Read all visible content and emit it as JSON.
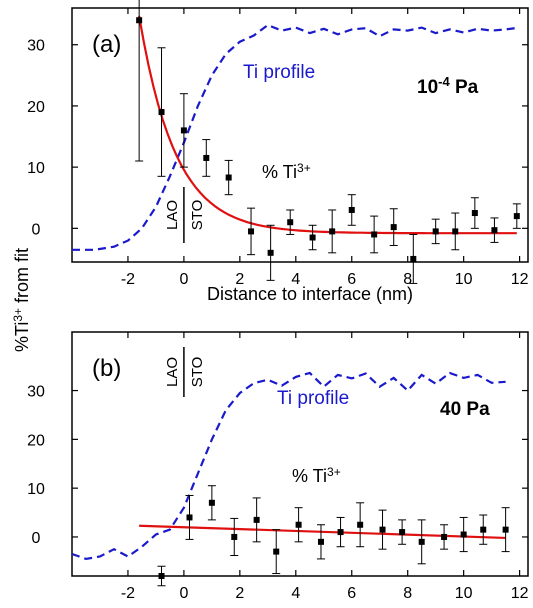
{
  "figure": {
    "ylabel": "%Ti³⁺ from fit",
    "ylabel_base": "%Ti",
    "ylabel_sup": "3+",
    "ylabel_rest": " from fit"
  },
  "chart_data": [
    {
      "type": "scatter",
      "panel": "(a)",
      "pressure": "10-4 Pa",
      "pressure_base": "10",
      "pressure_sup": "-4",
      "pressure_unit": " Pa",
      "xlabel": "Distance to interface (nm)",
      "xlim": [
        -4,
        12.3
      ],
      "ylim": [
        -5.5,
        36
      ],
      "xticks": [
        -2,
        0,
        2,
        4,
        6,
        8,
        10,
        12
      ],
      "yticks": [
        0,
        10,
        20,
        30
      ],
      "interface_left": "LAO",
      "interface_right": "STO",
      "ti_label": "Ti profile",
      "series_label_base": "% Ti",
      "series_label_sup": "3+",
      "colors": {
        "ti_profile": "#1a1acc",
        "fit": "#e01010",
        "points": "#000000"
      },
      "points": [
        {
          "x": -1.6,
          "y": 34.0,
          "err": 23.0
        },
        {
          "x": -0.8,
          "y": 19.0,
          "err": 10.5
        },
        {
          "x": 0.0,
          "y": 16.0,
          "err": 6.0
        },
        {
          "x": 0.8,
          "y": 11.5,
          "err": 3.0
        },
        {
          "x": 1.6,
          "y": 8.3,
          "err": 2.8
        },
        {
          "x": 2.4,
          "y": -0.5,
          "err": 3.8
        },
        {
          "x": 3.1,
          "y": -4.0,
          "err": 4.5
        },
        {
          "x": 3.8,
          "y": 1.0,
          "err": 2.0
        },
        {
          "x": 4.6,
          "y": -1.5,
          "err": 2.0
        },
        {
          "x": 5.3,
          "y": -0.5,
          "err": 3.5
        },
        {
          "x": 6.0,
          "y": 3.0,
          "err": 2.5
        },
        {
          "x": 6.8,
          "y": -1.0,
          "err": 3.0
        },
        {
          "x": 7.5,
          "y": 0.2,
          "err": 3.0
        },
        {
          "x": 8.2,
          "y": -5.0,
          "err": 4.0
        },
        {
          "x": 9.0,
          "y": -0.5,
          "err": 2.0
        },
        {
          "x": 9.7,
          "y": -0.5,
          "err": 3.0
        },
        {
          "x": 10.4,
          "y": 2.5,
          "err": 2.5
        },
        {
          "x": 11.1,
          "y": -0.3,
          "err": 2.0
        },
        {
          "x": 11.9,
          "y": 2.0,
          "err": 2.0
        }
      ],
      "fit": {
        "x_start": -1.6,
        "x_end": 11.9,
        "y_inf": -0.8,
        "amplitude": 35.5,
        "decay_nm": 1.3
      },
      "ti_profile": [
        [
          -4,
          -3.5
        ],
        [
          -3.2,
          -3.5
        ],
        [
          -2.5,
          -3.0
        ],
        [
          -2,
          -2.0
        ],
        [
          -1.5,
          0.0
        ],
        [
          -1,
          3.5
        ],
        [
          -0.5,
          8.5
        ],
        [
          0,
          14
        ],
        [
          0.5,
          20
        ],
        [
          1,
          25
        ],
        [
          1.5,
          28.5
        ],
        [
          2,
          30.5
        ],
        [
          2.5,
          31.5
        ],
        [
          3,
          33.2
        ],
        [
          3.5,
          32.3
        ],
        [
          4,
          32.8
        ],
        [
          4.5,
          31.9
        ],
        [
          5,
          32.6
        ],
        [
          5.5,
          31.7
        ],
        [
          6,
          32.5
        ],
        [
          6.5,
          32.7
        ],
        [
          7,
          31.4
        ],
        [
          7.5,
          32.5
        ],
        [
          8,
          32.3
        ],
        [
          8.5,
          32.8
        ],
        [
          9,
          31.9
        ],
        [
          9.5,
          32.5
        ],
        [
          10,
          32.0
        ],
        [
          10.5,
          32.6
        ],
        [
          11,
          32.3
        ],
        [
          11.5,
          32.5
        ],
        [
          12,
          32.8
        ]
      ]
    },
    {
      "type": "scatter",
      "panel": "(b)",
      "pressure": "40 Pa",
      "xlabel": "",
      "xlim": [
        -4,
        12.3
      ],
      "ylim": [
        -8,
        42
      ],
      "xticks": [
        -2,
        0,
        2,
        4,
        6,
        8,
        10,
        12
      ],
      "yticks": [
        0,
        10,
        20,
        30
      ],
      "interface_left": "LAO",
      "interface_right": "STO",
      "ti_label": "Ti profile",
      "series_label_base": "% Ti",
      "series_label_sup": "3+",
      "colors": {
        "ti_profile": "#1a1acc",
        "fit": "#e01010",
        "points": "#000000"
      },
      "points": [
        {
          "x": -0.8,
          "y": -8.0,
          "err": 2.0
        },
        {
          "x": 0.2,
          "y": 4.0,
          "err": 4.5
        },
        {
          "x": 1.0,
          "y": 7.0,
          "err": 3.5
        },
        {
          "x": 1.8,
          "y": 0.0,
          "err": 3.8
        },
        {
          "x": 2.6,
          "y": 3.5,
          "err": 4.5
        },
        {
          "x": 3.3,
          "y": -3.0,
          "err": 4.5
        },
        {
          "x": 4.1,
          "y": 2.5,
          "err": 3.5
        },
        {
          "x": 4.9,
          "y": -1.0,
          "err": 3.5
        },
        {
          "x": 5.6,
          "y": 1.0,
          "err": 3.0
        },
        {
          "x": 6.3,
          "y": 2.5,
          "err": 4.5
        },
        {
          "x": 7.1,
          "y": 1.5,
          "err": 4.0
        },
        {
          "x": 7.8,
          "y": 1.0,
          "err": 2.5
        },
        {
          "x": 8.5,
          "y": -1.0,
          "err": 4.5
        },
        {
          "x": 9.3,
          "y": 0.0,
          "err": 2.5
        },
        {
          "x": 10.0,
          "y": 0.5,
          "err": 3.5
        },
        {
          "x": 10.7,
          "y": 1.5,
          "err": 3.0
        },
        {
          "x": 11.5,
          "y": 1.5,
          "err": 4.5
        }
      ],
      "fit": {
        "x_start": -1.6,
        "x_end": 11.5,
        "y_start": 2.3,
        "y_end": -0.2
      },
      "ti_profile": [
        [
          -4,
          -3.5
        ],
        [
          -3.5,
          -4.5
        ],
        [
          -3,
          -4.0
        ],
        [
          -2.5,
          -2.5
        ],
        [
          -2,
          -4.0
        ],
        [
          -1.5,
          -2.0
        ],
        [
          -1,
          0.5
        ],
        [
          -0.5,
          1.5
        ],
        [
          0,
          6
        ],
        [
          0.5,
          13
        ],
        [
          1,
          20
        ],
        [
          1.5,
          26
        ],
        [
          2,
          29.5
        ],
        [
          2.5,
          31.5
        ],
        [
          3,
          32.2
        ],
        [
          3.5,
          31.0
        ],
        [
          4,
          32.8
        ],
        [
          4.5,
          33.6
        ],
        [
          5,
          30.8
        ],
        [
          5.5,
          33.2
        ],
        [
          6,
          32.5
        ],
        [
          6.5,
          33.5
        ],
        [
          7,
          30.8
        ],
        [
          7.5,
          32.6
        ],
        [
          8,
          30.0
        ],
        [
          8.5,
          33.2
        ],
        [
          9,
          31.4
        ],
        [
          9.5,
          33.6
        ],
        [
          10,
          32.6
        ],
        [
          10.5,
          33.2
        ],
        [
          11,
          31.6
        ],
        [
          11.5,
          31.8
        ]
      ]
    }
  ]
}
